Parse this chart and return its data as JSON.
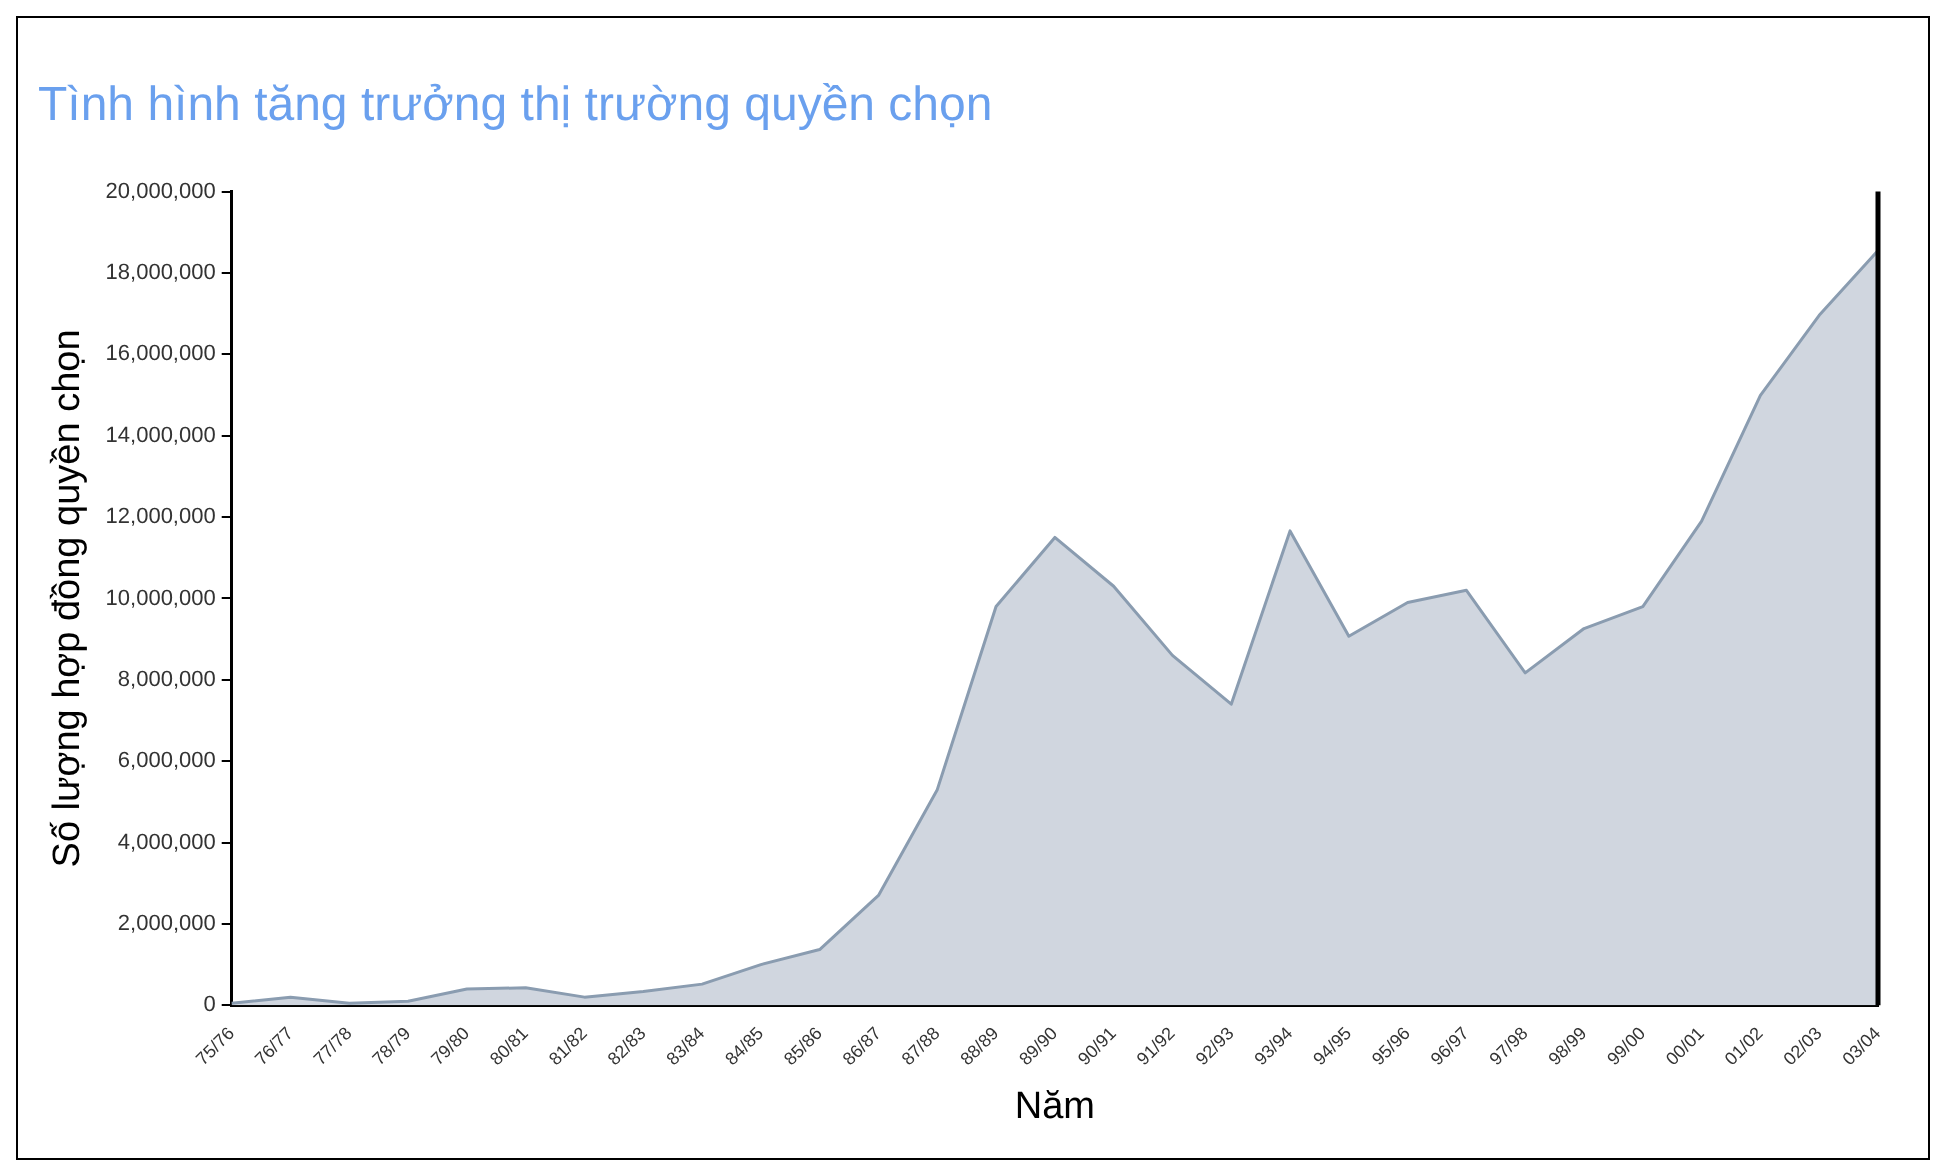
{
  "chart_data": {
    "type": "area",
    "title": "Tình hình tăng trưởng thị trường quyền chọn",
    "xlabel": "Năm",
    "ylabel": "Số lượng hợp đồng quyền chọn",
    "categories": [
      "75/76",
      "76/77",
      "77/78",
      "78/79",
      "79/80",
      "80/81",
      "81/82",
      "82/83",
      "83/84",
      "84/85",
      "85/86",
      "86/87",
      "87/88",
      "88/89",
      "89/90",
      "90/91",
      "91/92",
      "92/93",
      "93/94",
      "94/95",
      "95/96",
      "96/97",
      "97/98",
      "98/99",
      "99/00",
      "00/01",
      "01/02",
      "02/03",
      "03/04"
    ],
    "series": [
      {
        "color": "#d0d6df",
        "values": [
          50000,
          200000,
          50000,
          100000,
          400000,
          430000,
          200000,
          340000,
          520000,
          1000000,
          1370000,
          2700000,
          5300000,
          9800000,
          11500000,
          10300000,
          8600000,
          7400000,
          11660000,
          9070000,
          9900000,
          10200000,
          8170000,
          9260000,
          9800000,
          11900000,
          14990000,
          16960000,
          18550000
        ]
      }
    ],
    "ylim": [
      0,
      20000000
    ],
    "yticks": [
      0,
      {
        "value": 2000000,
        "label": "2,000,000"
      },
      {
        "value": 4000000,
        "label": "4,000,000"
      },
      {
        "value": 6000000,
        "label": "6,000,000"
      },
      {
        "value": 8000000,
        "label": "8,000,000"
      },
      {
        "value": 10000000,
        "label": "10,000,000"
      },
      {
        "value": 12000000,
        "label": "12,000,000"
      },
      {
        "value": 14000000,
        "label": "14,000,000"
      },
      {
        "value": 16000000,
        "label": "16,000,000"
      },
      {
        "value": 18000000,
        "label": "18,000,000"
      },
      {
        "value": 20000000,
        "label": "20,000,000"
      }
    ],
    "grid": false,
    "legend": false
  }
}
